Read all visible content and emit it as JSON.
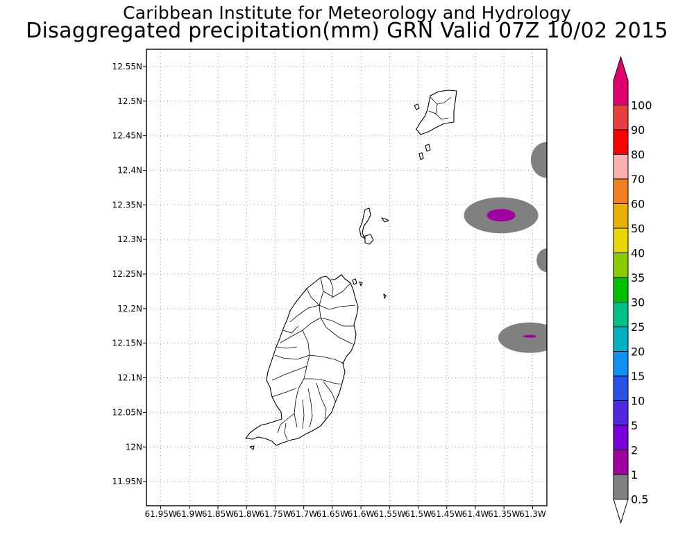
{
  "title_line1": "Caribbean Institute for Meteorology and Hydrology",
  "title_line2": "Disaggregated precipitation(mm) GRN Valid 07Z 10/02 2015",
  "map": {
    "lon_range": [
      -61.975,
      -61.275
    ],
    "lat_range": [
      11.915,
      12.575
    ],
    "lat_ticks": [
      {
        "value": 12.55,
        "label": "12.55N"
      },
      {
        "value": 12.5,
        "label": "12.5N"
      },
      {
        "value": 12.45,
        "label": "12.45N"
      },
      {
        "value": 12.4,
        "label": "12.4N"
      },
      {
        "value": 12.35,
        "label": "12.35N"
      },
      {
        "value": 12.3,
        "label": "12.3N"
      },
      {
        "value": 12.25,
        "label": "12.25N"
      },
      {
        "value": 12.2,
        "label": "12.2N"
      },
      {
        "value": 12.15,
        "label": "12.15N"
      },
      {
        "value": 12.1,
        "label": "12.1N"
      },
      {
        "value": 12.05,
        "label": "12.05N"
      },
      {
        "value": 12.0,
        "label": "12N"
      },
      {
        "value": 11.95,
        "label": "11.95N"
      }
    ],
    "lon_ticks": [
      {
        "value": -61.95,
        "label": "61.95W"
      },
      {
        "value": -61.9,
        "label": "61.9W"
      },
      {
        "value": -61.85,
        "label": "61.85W"
      },
      {
        "value": -61.8,
        "label": "61.8W"
      },
      {
        "value": -61.75,
        "label": "61.75W"
      },
      {
        "value": -61.7,
        "label": "61.7W"
      },
      {
        "value": -61.65,
        "label": "61.65W"
      },
      {
        "value": -61.6,
        "label": "61.6W"
      },
      {
        "value": -61.55,
        "label": "61.55W"
      },
      {
        "value": -61.5,
        "label": "61.5W"
      },
      {
        "value": -61.45,
        "label": "61.45W"
      },
      {
        "value": -61.4,
        "label": "61.4W"
      },
      {
        "value": -61.35,
        "label": "61.35W"
      },
      {
        "value": -61.3,
        "label": "61.3W"
      }
    ],
    "grid": "dotted",
    "precip_areas": [
      {
        "lon": -61.275,
        "lat": 12.415,
        "rx_deg": 0.028,
        "ry_deg": 0.026,
        "category": "0.5-1"
      },
      {
        "lon": -61.355,
        "lat": 12.335,
        "rx_deg": 0.065,
        "ry_deg": 0.026,
        "category": "0.5-1"
      },
      {
        "lon": -61.355,
        "lat": 12.335,
        "rx_deg": 0.025,
        "ry_deg": 0.009,
        "category": "1-2"
      },
      {
        "lon": -61.275,
        "lat": 12.27,
        "rx_deg": 0.018,
        "ry_deg": 0.017,
        "category": "0.5-1"
      },
      {
        "lon": -61.305,
        "lat": 12.158,
        "rx_deg": 0.055,
        "ry_deg": 0.022,
        "category": "0.5-1"
      },
      {
        "lon": -61.305,
        "lat": 12.16,
        "rx_deg": 0.012,
        "ry_deg": 0.002,
        "category": "1-2"
      }
    ]
  },
  "colorbar": {
    "labels": [
      "0.5",
      "1",
      "2",
      "5",
      "10",
      "15",
      "20",
      "25",
      "30",
      "35",
      "40",
      "50",
      "60",
      "70",
      "80",
      "90",
      "100"
    ],
    "colors": [
      "#808080",
      "#a000a0",
      "#7800d8",
      "#5028e0",
      "#2850e8",
      "#1090f0",
      "#00b0c0",
      "#00c088",
      "#00c000",
      "#88cc00",
      "#e8d800",
      "#e8b000",
      "#f08020",
      "#f8b0b0",
      "#ff0000",
      "#e84040",
      "#e0006c"
    ],
    "under_color": "#ffffff",
    "over_color": "#e0006c"
  }
}
